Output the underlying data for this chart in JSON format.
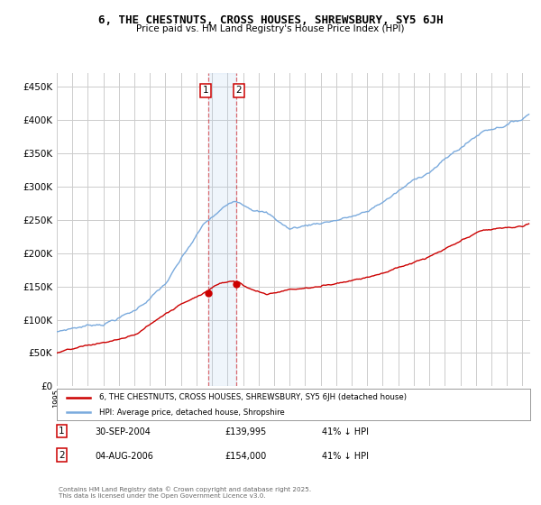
{
  "title": "6, THE CHESTNUTS, CROSS HOUSES, SHREWSBURY, SY5 6JH",
  "subtitle": "Price paid vs. HM Land Registry's House Price Index (HPI)",
  "legend_line1": "6, THE CHESTNUTS, CROSS HOUSES, SHREWSBURY, SY5 6JH (detached house)",
  "legend_line2": "HPI: Average price, detached house, Shropshire",
  "transaction1_date": "30-SEP-2004",
  "transaction1_price": "£139,995",
  "transaction1_hpi": "41% ↓ HPI",
  "transaction2_date": "04-AUG-2006",
  "transaction2_price": "£154,000",
  "transaction2_hpi": "41% ↓ HPI",
  "footer": "Contains HM Land Registry data © Crown copyright and database right 2025.\nThis data is licensed under the Open Government Licence v3.0.",
  "hpi_color": "#7aaadd",
  "price_color": "#cc0000",
  "vline_color": "#cc0000",
  "background_color": "#ffffff",
  "grid_color": "#cccccc",
  "ylim": [
    0,
    470000
  ],
  "yticks": [
    0,
    50000,
    100000,
    150000,
    200000,
    250000,
    300000,
    350000,
    400000,
    450000
  ]
}
